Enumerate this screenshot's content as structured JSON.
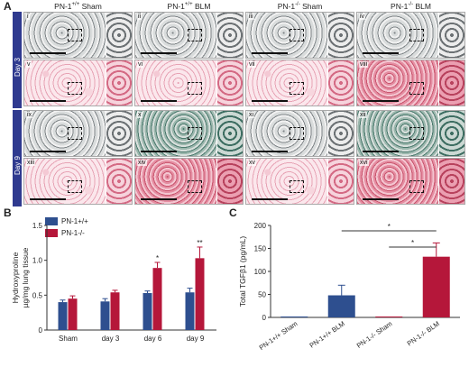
{
  "panel_a": {
    "letter": "A",
    "columns": [
      "PN-1+/+ Sham",
      "PN-1+/+ BLM",
      "PN-1-/- Sham",
      "PN-1-/- BLM"
    ],
    "rows": [
      "Day 3",
      "Day 9"
    ],
    "tiles": [
      [
        "i",
        "ii",
        "iii",
        "iv"
      ],
      [
        "v",
        "vi",
        "vii",
        "viii"
      ],
      [
        "ix",
        "x",
        "xi",
        "xii"
      ],
      [
        "xiii",
        "xiv",
        "xv",
        "xvi"
      ]
    ],
    "stains": [
      [
        "mt",
        "mt",
        "mt",
        "mt"
      ],
      [
        "he",
        "he",
        "he",
        "he-dense"
      ],
      [
        "mt",
        "mt-green",
        "mt",
        "mt-green"
      ],
      [
        "he",
        "he-dense",
        "he",
        "he-dense"
      ]
    ]
  },
  "panel_b": {
    "letter": "B",
    "chart_data": {
      "type": "bar",
      "categories": [
        "Sham",
        "day 3",
        "day 6",
        "day 9"
      ],
      "series": [
        {
          "name": "PN-1+/+",
          "values": [
            0.4,
            0.41,
            0.53,
            0.54
          ],
          "errors": [
            0.03,
            0.04,
            0.03,
            0.06
          ],
          "color": "#2e4f8f"
        },
        {
          "name": "PN-1-/-",
          "values": [
            0.45,
            0.54,
            0.89,
            1.03
          ],
          "errors": [
            0.04,
            0.03,
            0.08,
            0.16
          ],
          "color": "#b5173a"
        }
      ],
      "significance": [
        "",
        "",
        "*",
        "**"
      ],
      "ylabel_line1": "Hydroxyproline",
      "ylabel_line2": "µg/mg lung tissue",
      "ylim": [
        0,
        1.5
      ],
      "yticks": [
        0,
        0.5,
        1.0,
        1.5
      ],
      "ytick_labels": [
        "0",
        "0.5",
        "1.0",
        "1.5"
      ],
      "legend": "top-left"
    }
  },
  "panel_c": {
    "letter": "C",
    "chart_data": {
      "type": "bar",
      "categories": [
        "PN-1+/+ Sham",
        "PN-1+/+ BLM",
        "PN-1-/- Sham",
        "PN-1-/- BLM"
      ],
      "values": [
        0,
        48,
        0,
        132
      ],
      "errors": [
        0,
        22,
        0,
        30
      ],
      "colors": [
        "#2e4f8f",
        "#2e4f8f",
        "#b5173a",
        "#b5173a"
      ],
      "ylabel": "Total TGFβ1 (pg/mL)",
      "ylim": [
        0,
        200
      ],
      "yticks": [
        0,
        50,
        100,
        150,
        200
      ],
      "ytick_labels": [
        "0",
        "50",
        "100",
        "150",
        "200"
      ],
      "brackets": [
        {
          "from": 1,
          "to": 3,
          "label": "*"
        },
        {
          "from": 2,
          "to": 3,
          "label": "*"
        }
      ]
    }
  }
}
